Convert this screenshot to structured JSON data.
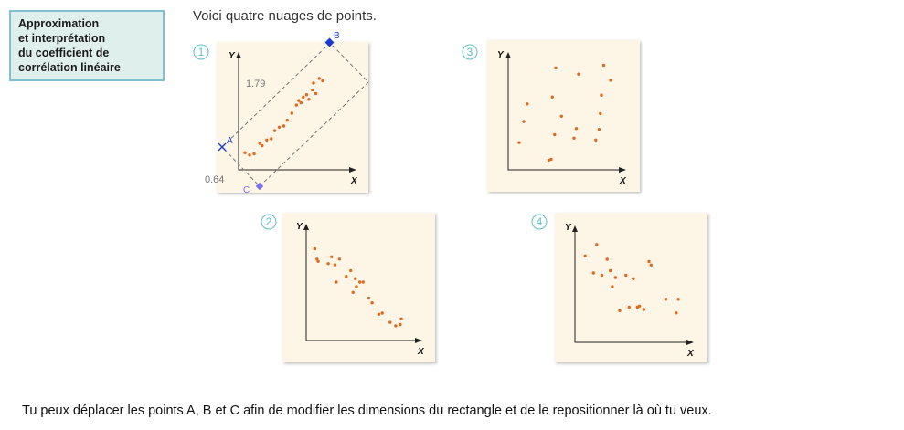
{
  "sidebar": {
    "lines": [
      "Approximation",
      "et interprétation",
      "du coefficient de",
      "corrélation linéaire"
    ]
  },
  "intro_text": "Voici quatre nuages de points.",
  "footer_text": "Tu peux déplacer les points A, B et C afin de modifier les dimensions du rectangle et de le repositionner là où tu veux.",
  "colors": {
    "dot": "#e06a1e",
    "panel": "#fdf5e6",
    "badge": "#5cc0c8",
    "handle_ab": "#1a3ad6",
    "handle_c": "#7b6ee8"
  },
  "chart_data": [
    {
      "type": "scatter",
      "number": "1",
      "xlabel": "X",
      "ylabel": "Y",
      "x": [
        0.4,
        0.8,
        1.2,
        1.7,
        1.9,
        2.3,
        2.7,
        3.0,
        3.4,
        3.8,
        4.1,
        4.5,
        4.9,
        5.1,
        5.3,
        5.5,
        5.8,
        6.0,
        6.3,
        6.6,
        6.4,
        6.9,
        7.2
      ],
      "y": [
        1.4,
        1.2,
        1.3,
        2.2,
        2.0,
        2.5,
        2.6,
        3.3,
        3.6,
        3.7,
        4.2,
        4.8,
        5.5,
        5.9,
        5.7,
        6.2,
        6.4,
        6.0,
        6.8,
        6.5,
        7.4,
        7.8,
        7.6
      ],
      "xlim": [
        0,
        10
      ],
      "ylim": [
        0,
        10
      ],
      "annotations": {
        "range_high": "1.79",
        "range_low": "0.64",
        "handles": [
          {
            "label": "A"
          },
          {
            "label": "B"
          },
          {
            "label": "C"
          }
        ]
      }
    },
    {
      "type": "scatter",
      "number": "2",
      "xlabel": "X",
      "ylabel": "Y",
      "x": [
        0.6,
        0.8,
        0.9,
        1.8,
        2.1,
        2.4,
        2.5,
        2.8,
        3.4,
        3.8,
        4.0,
        4.2,
        4.3,
        4.6,
        4.9,
        5.4,
        5.7,
        6.3,
        6.6,
        7.3,
        7.8,
        8.2,
        8.3
      ],
      "y": [
        7.9,
        7.0,
        6.8,
        6.6,
        7.2,
        6.5,
        5.0,
        7.0,
        5.5,
        6.0,
        4.1,
        5.3,
        4.6,
        5.0,
        5.0,
        3.6,
        3.2,
        2.2,
        2.3,
        1.5,
        1.2,
        1.3,
        1.8
      ],
      "xlim": [
        0,
        10
      ],
      "ylim": [
        0,
        10
      ]
    },
    {
      "type": "scatter",
      "number": "3",
      "xlabel": "X",
      "ylabel": "Y",
      "x": [
        0.8,
        1.2,
        1.5,
        3.4,
        3.6,
        3.7,
        3.9,
        4.0,
        4.5,
        5.6,
        5.8,
        6.0,
        7.5,
        7.8,
        7.9,
        8.0,
        8.2,
        8.8
      ],
      "y": [
        3.0,
        5.4,
        7.4,
        1.0,
        1.1,
        8.2,
        3.9,
        11.5,
        6.0,
        3.5,
        4.6,
        10.8,
        3.3,
        4.5,
        6.3,
        8.4,
        11.8,
        10.1
      ],
      "xlim": [
        0,
        10
      ],
      "ylim": [
        0,
        13
      ]
    },
    {
      "type": "scatter",
      "number": "4",
      "xlabel": "X",
      "ylabel": "Y",
      "x": [
        0.8,
        1.6,
        1.9,
        2.4,
        2.9,
        3.2,
        3.4,
        3.7,
        4.1,
        4.7,
        5.0,
        5.4,
        5.8,
        6.0,
        6.4,
        6.9,
        7.1,
        8.5,
        9.5,
        9.7
      ],
      "y": [
        7.5,
        6.0,
        8.5,
        5.8,
        7.2,
        6.2,
        4.8,
        5.6,
        2.7,
        5.8,
        3.0,
        5.5,
        3.0,
        3.1,
        2.8,
        7.0,
        6.7,
        3.7,
        2.5,
        3.7
      ],
      "xlim": [
        0,
        11
      ],
      "ylim": [
        0,
        10
      ]
    }
  ]
}
